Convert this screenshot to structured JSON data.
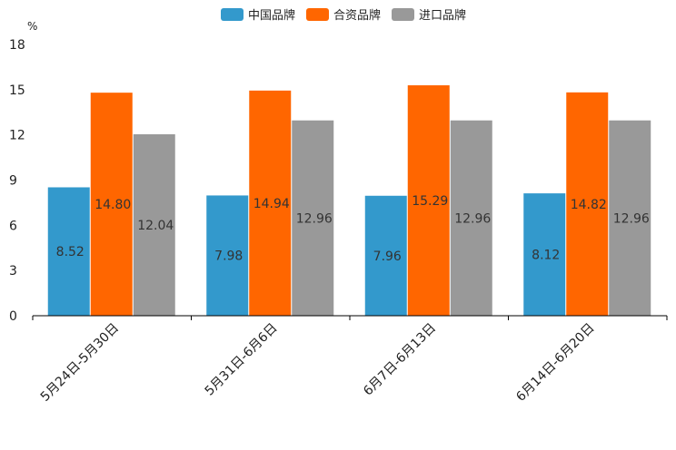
{
  "chart_data": {
    "type": "bar",
    "unit": "%",
    "categories": [
      "5月24日-5月30日",
      "5月31日-6月6日",
      "6月7日-6月13日",
      "6月14日-6月20日"
    ],
    "series": [
      {
        "name": "中国品牌",
        "color": "#3399cc",
        "values": [
          8.52,
          7.98,
          7.96,
          8.12
        ],
        "labels": [
          "8.52",
          "7.98",
          "7.96",
          "8.12"
        ]
      },
      {
        "name": "合资品牌",
        "color": "#ff6600",
        "values": [
          14.8,
          14.94,
          15.29,
          14.82
        ],
        "labels": [
          "14.80",
          "14.94",
          "15.29",
          "14.82"
        ]
      },
      {
        "name": "进口品牌",
        "color": "#999999",
        "values": [
          12.04,
          12.96,
          12.96,
          12.96
        ],
        "labels": [
          "12.04",
          "12.96",
          "12.96",
          "12.96"
        ]
      }
    ],
    "ylim": [
      0,
      18
    ],
    "yticks": [
      "0",
      "3",
      "6",
      "9",
      "12",
      "15",
      "18"
    ],
    "legend_position": "top-center"
  }
}
